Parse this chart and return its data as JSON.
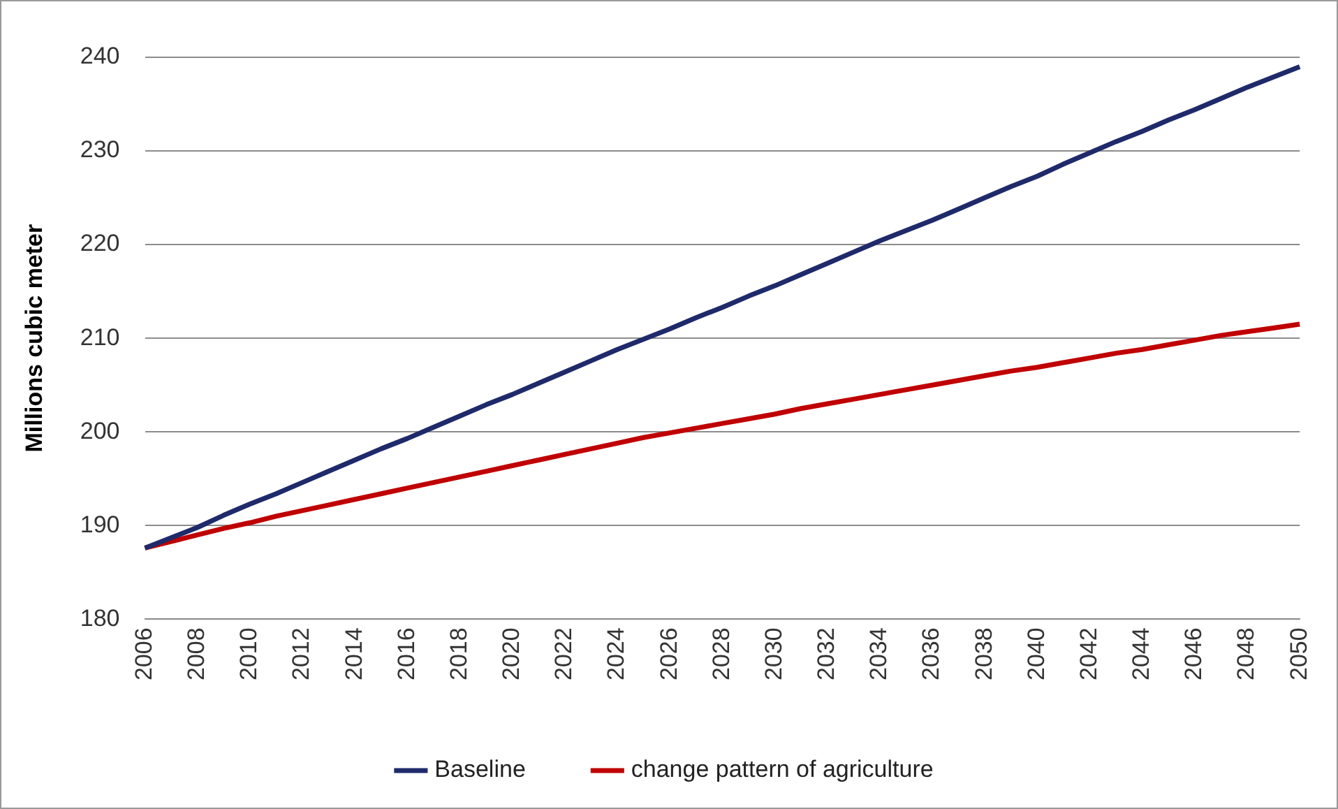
{
  "chart_data": {
    "type": "line",
    "ylabel": "Millions cubic meter",
    "categories": [
      "2006",
      null,
      "2008",
      null,
      "2010",
      null,
      "2012",
      null,
      "2014",
      null,
      "2016",
      null,
      "2018",
      null,
      "2020",
      null,
      "2022",
      null,
      "2024",
      null,
      "2026",
      null,
      "2028",
      null,
      "2030",
      null,
      "2032",
      null,
      "2034",
      null,
      "2036",
      null,
      "2038",
      null,
      "2040",
      null,
      "2042",
      null,
      "2044",
      null,
      "2046",
      null,
      "2048",
      null,
      "2050"
    ],
    "series": [
      {
        "name": "Baseline",
        "color": "#1f2a6b",
        "values": [
          187.6,
          188.7,
          189.8,
          191.1,
          192.3,
          193.4,
          194.6,
          195.8,
          197,
          198.2,
          199.3,
          200.5,
          201.7,
          202.9,
          204,
          205.2,
          206.4,
          207.6,
          208.8,
          209.9,
          211,
          212.2,
          213.3,
          214.5,
          215.6,
          216.8,
          218,
          219.2,
          220.4,
          221.5,
          222.6,
          223.8,
          225,
          226.2,
          227.3,
          228.6,
          229.8,
          231,
          232.1,
          233.3,
          234.4,
          235.6,
          236.8,
          237.9,
          239
        ]
      },
      {
        "name": "change pattern of agriculture",
        "color": "#c00000",
        "values": [
          187.6,
          188.3,
          189,
          189.7,
          190.3,
          191,
          191.6,
          192.2,
          192.8,
          193.4,
          194,
          194.6,
          195.2,
          195.8,
          196.4,
          197,
          197.6,
          198.2,
          198.8,
          199.4,
          199.9,
          200.4,
          200.9,
          201.4,
          201.9,
          202.5,
          203,
          203.5,
          204,
          204.5,
          205,
          205.5,
          206,
          206.5,
          206.9,
          207.4,
          207.9,
          208.4,
          208.8,
          209.3,
          209.8,
          210.3,
          210.7,
          211.1,
          211.5
        ]
      }
    ],
    "ylim": [
      180,
      240
    ],
    "yticks": [
      180,
      190,
      200,
      210,
      220,
      230,
      240
    ],
    "grid": "y",
    "legend": "bottom",
    "marker": "none",
    "line_style": "solid"
  }
}
